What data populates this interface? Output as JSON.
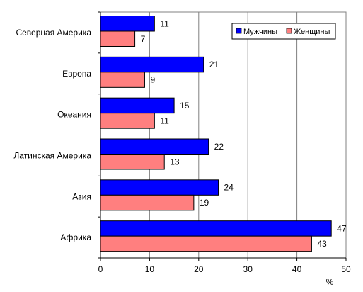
{
  "chart_data": {
    "type": "bar",
    "orientation": "horizontal",
    "categories": [
      "Северная Америка",
      "Европа",
      "Океания",
      "Латинская Америка",
      "Азия",
      "Африка"
    ],
    "series": [
      {
        "name": "Мужчины",
        "color": "#0000ff",
        "values": [
          11,
          21,
          15,
          22,
          24,
          47
        ]
      },
      {
        "name": "Женщины",
        "color": "#ff7f7f",
        "values": [
          7,
          9,
          11,
          13,
          19,
          43
        ]
      }
    ],
    "xlabel": "%",
    "xlim": [
      0,
      50
    ],
    "xticks": [
      0,
      10,
      20,
      30,
      40,
      50
    ],
    "grid": "vertical",
    "legend_position": "top-right"
  }
}
